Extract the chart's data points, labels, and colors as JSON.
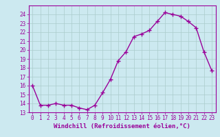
{
  "x": [
    0,
    1,
    2,
    3,
    4,
    5,
    6,
    7,
    8,
    9,
    10,
    11,
    12,
    13,
    14,
    15,
    16,
    17,
    18,
    19,
    20,
    21,
    22,
    23
  ],
  "y": [
    16.0,
    13.8,
    13.8,
    14.0,
    13.8,
    13.8,
    13.5,
    13.3,
    13.8,
    15.2,
    16.7,
    18.8,
    19.8,
    21.5,
    21.8,
    22.2,
    23.2,
    24.2,
    24.0,
    23.8,
    23.2,
    22.5,
    19.8,
    17.7
  ],
  "line_color": "#990099",
  "marker": "+",
  "marker_size": 4,
  "background_color": "#cce9f0",
  "grid_color": "#aacccc",
  "xlabel": "Windchill (Refroidissement éolien,°C)",
  "xlabel_fontsize": 6.5,
  "ylim": [
    13,
    25
  ],
  "xlim": [
    -0.5,
    23.5
  ],
  "yticks": [
    13,
    14,
    15,
    16,
    17,
    18,
    19,
    20,
    21,
    22,
    23,
    24
  ],
  "xticks": [
    0,
    1,
    2,
    3,
    4,
    5,
    6,
    7,
    8,
    9,
    10,
    11,
    12,
    13,
    14,
    15,
    16,
    17,
    18,
    19,
    20,
    21,
    22,
    23
  ],
  "tick_fontsize": 5.5,
  "linewidth": 1.0
}
